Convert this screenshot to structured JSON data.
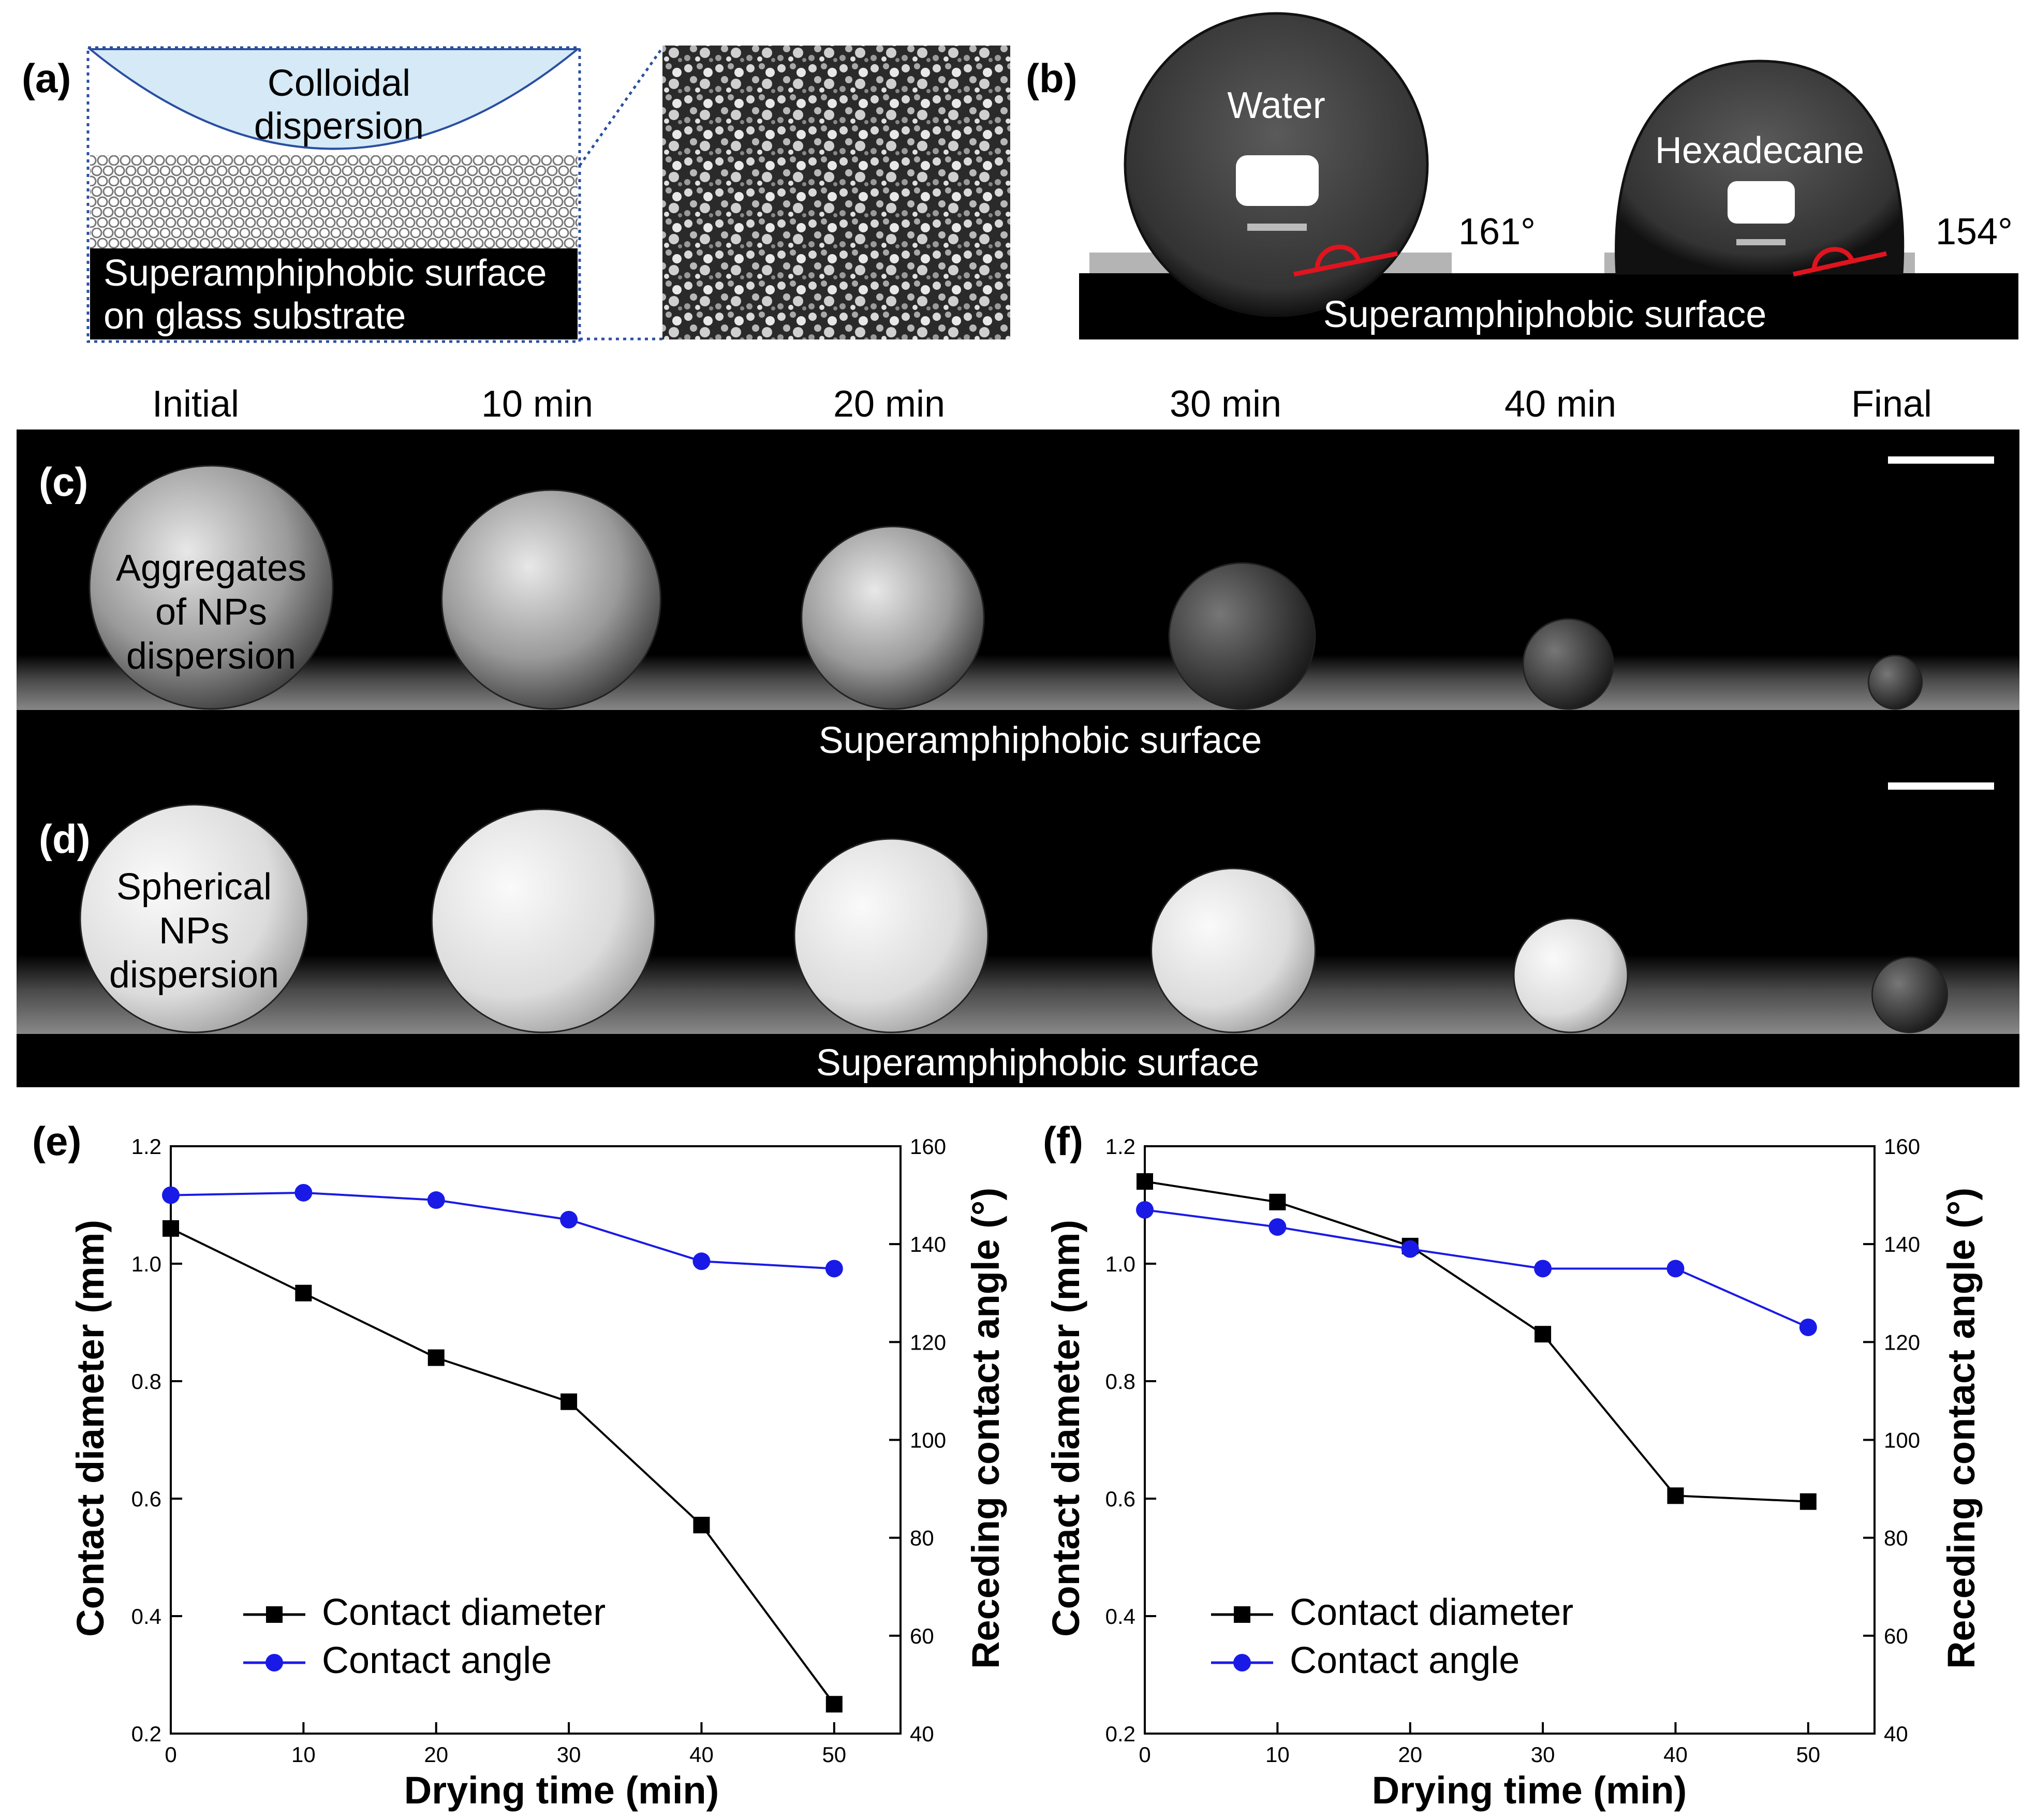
{
  "panel_labels": [
    "(a)",
    "(b)",
    "(c)",
    "(d)",
    "(e)",
    "(f)"
  ],
  "panel_a": {
    "dispersion_line1": "Colloidal",
    "dispersion_line2": "dispersion",
    "surface_line1": "Superamphiphobic surface",
    "surface_line2": "on glass substrate"
  },
  "panel_b": {
    "water_label": "Water",
    "water_angle": "161°",
    "hexadecane_label": "Hexadecane",
    "hexadecane_angle": "154°",
    "surface_label": "Superamphiphobic surface"
  },
  "time_labels": [
    "Initial",
    "10 min",
    "20 min",
    "30 min",
    "40 min",
    "Final"
  ],
  "panel_c": {
    "note_lines": [
      "Aggregates",
      "of NPs",
      "dispersion"
    ],
    "surface_label": "Superamphiphobic surface",
    "drop_radius_mm": [
      1.0,
      0.9,
      0.75,
      0.6,
      0.37,
      0.22
    ]
  },
  "panel_d": {
    "note_lines": [
      "Spherical",
      "NPs",
      "dispersion"
    ],
    "surface_label": "Superamphiphobic surface",
    "drop_radius_mm": [
      1.0,
      0.98,
      0.85,
      0.72,
      0.5,
      0.33
    ]
  },
  "colors": {
    "diameter_series": "#000000",
    "angle_series": "#1a1ae6",
    "dispersion_fill": "#d5e9f7",
    "angle_arc": "#e0141e"
  },
  "chart_data": [
    {
      "type": "line",
      "panel": "(e)",
      "xlabel": "Drying time (min)",
      "ylabel": "Contact diameter (mm)",
      "y2label": "Receding contact angle (°)",
      "xlim": [
        0,
        55
      ],
      "ylim": [
        0.2,
        1.2
      ],
      "y2lim": [
        40,
        160
      ],
      "xticks": [
        0,
        10,
        20,
        30,
        40,
        50
      ],
      "yticks": [
        0.2,
        0.4,
        0.6,
        0.8,
        1.0,
        1.2
      ],
      "y2ticks": [
        40,
        60,
        80,
        100,
        120,
        140,
        160
      ],
      "x": [
        0,
        10,
        20,
        30,
        40,
        50
      ],
      "series": [
        {
          "name": "Contact diameter",
          "axis": "left",
          "marker": "square",
          "values": [
            1.06,
            0.95,
            0.84,
            0.765,
            0.555,
            0.25
          ]
        },
        {
          "name": "Contact angle",
          "axis": "right",
          "marker": "circle",
          "values": [
            150,
            150.5,
            149,
            145,
            136.5,
            135
          ]
        }
      ],
      "legend_position": "bottom-left"
    },
    {
      "type": "line",
      "panel": "(f)",
      "xlabel": "Drying time (min)",
      "ylabel": "Contact diameter (mm)",
      "y2label": "Receding contact angle (°)",
      "xlim": [
        0,
        55
      ],
      "ylim": [
        0.2,
        1.2
      ],
      "y2lim": [
        40,
        160
      ],
      "xticks": [
        0,
        10,
        20,
        30,
        40,
        50
      ],
      "yticks": [
        0.2,
        0.4,
        0.6,
        0.8,
        1.0,
        1.2
      ],
      "y2ticks": [
        40,
        60,
        80,
        100,
        120,
        140,
        160
      ],
      "x": [
        0,
        10,
        20,
        30,
        40,
        50
      ],
      "series": [
        {
          "name": "Contact diameter",
          "axis": "left",
          "marker": "square",
          "values": [
            1.14,
            1.105,
            1.03,
            0.88,
            0.605,
            0.595
          ]
        },
        {
          "name": "Contact angle",
          "axis": "right",
          "marker": "circle",
          "values": [
            147,
            143.5,
            139,
            135,
            135,
            123
          ]
        }
      ],
      "legend_position": "bottom-left"
    }
  ]
}
